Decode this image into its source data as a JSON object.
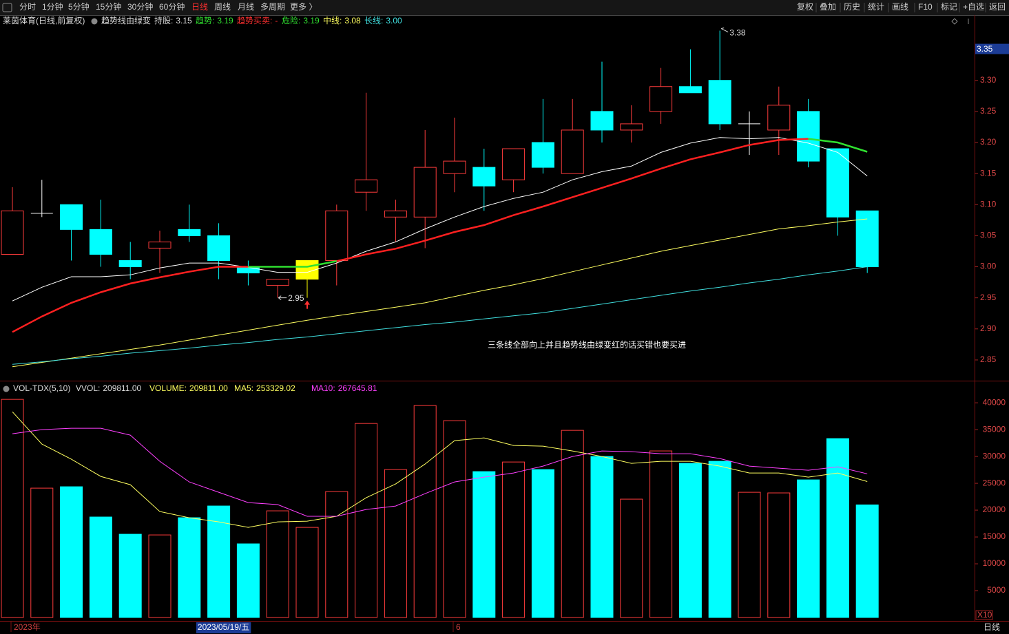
{
  "toolbar": {
    "left": [
      "分时",
      "1分钟",
      "5分钟",
      "15分钟",
      "30分钟",
      "60分钟",
      "日线",
      "周线",
      "月线",
      "多周期",
      "更多 〉"
    ],
    "active_index": 6,
    "right": [
      "复权",
      "叠加",
      "历史",
      "统计",
      "画线",
      "F10",
      "标记",
      "+自选",
      "返回"
    ]
  },
  "period_label": "日线",
  "chart_data": [
    {
      "type": "candlestick",
      "title": "莱茵体育(日线,前复权)",
      "subtitle": "趋势线由绿变",
      "indicators": [
        {
          "label": "持股:",
          "value": 3.15,
          "color": "#dddddd"
        },
        {
          "label": "趋势:",
          "value": 3.19,
          "color": "#30e030"
        },
        {
          "label": "趋势买卖:",
          "value": "-",
          "color": "#ff3030"
        },
        {
          "label": "危险:",
          "value": 3.19,
          "color": "#30e030"
        },
        {
          "label": "中线:",
          "value": 3.08,
          "color": "#ffff60"
        },
        {
          "label": "长线:",
          "value": {
            "value": 3,
            "label": "3.00"
          },
          "color": "#40e0e0"
        }
      ],
      "categories": [
        "2023年",
        null,
        null,
        null,
        null,
        null,
        null,
        "2023/05/19/五",
        null,
        null,
        null,
        null,
        null,
        null,
        null,
        "6",
        null,
        null,
        null,
        null,
        null,
        null,
        null,
        null,
        null,
        null,
        null,
        null,
        null,
        null
      ],
      "cursor_index": 7,
      "open": [
        3.02,
        3.086,
        3.1,
        3.06,
        3.01,
        3.03,
        3.06,
        3.05,
        3.0,
        2.97,
        2.98,
        3.01,
        3.12,
        3.08,
        3.08,
        3.15,
        3.16,
        3.14,
        3.2,
        3.15,
        3.25,
        3.22,
        3.25,
        3.29,
        3.3,
        3.23,
        3.22,
        3.25,
        3.19,
        3.09
      ],
      "high": [
        3.128,
        3.14,
        3.1,
        3.108,
        3.04,
        3.058,
        3.1,
        3.07,
        3.01,
        2.98,
        3.01,
        3.1,
        3.28,
        3.108,
        3.22,
        3.24,
        3.19,
        3.19,
        3.27,
        3.27,
        3.33,
        3.26,
        3.32,
        3.35,
        3.38,
        3.25,
        3.29,
        3.27,
        3.19,
        3.09
      ],
      "low": [
        3.02,
        3.08,
        3.01,
        3.0,
        2.98,
        2.99,
        3.04,
        2.98,
        2.97,
        2.95,
        2.95,
        2.97,
        3.09,
        3.04,
        3.03,
        3.12,
        3.09,
        3.12,
        3.15,
        3.15,
        3.2,
        3.2,
        3.23,
        3.28,
        3.22,
        3.18,
        3.18,
        3.16,
        3.05,
        2.99
      ],
      "close": [
        3.09,
        3.086,
        3.06,
        3.02,
        3.0,
        3.04,
        3.05,
        3.01,
        2.99,
        2.98,
        3.01,
        3.09,
        3.14,
        3.09,
        3.16,
        3.17,
        3.13,
        3.19,
        3.16,
        3.22,
        3.22,
        3.23,
        3.29,
        3.28,
        3.23,
        3.23,
        3.26,
        3.17,
        3.08,
        3.0
      ],
      "up_color": "#ff3c3c",
      "down_color": "#00ffff",
      "flat_color": "#ffffff",
      "highlight": {
        "index": 10,
        "color": "#ffff00"
      },
      "lines": [
        {
          "color": "#ffffff",
          "width": 1,
          "values": [
            2.945,
            2.967,
            2.984,
            2.984,
            2.987,
            2.998,
            3.006,
            3.006,
            2.999,
            2.991,
            2.991,
            3.006,
            3.025,
            3.04,
            3.061,
            3.08,
            3.097,
            3.11,
            3.12,
            3.14,
            3.153,
            3.162,
            3.184,
            3.199,
            3.208,
            3.206,
            3.208,
            3.199,
            3.184,
            3.146
          ]
        },
        {
          "color": "#ff2020",
          "width": 2.5,
          "values": [
            2.895,
            2.92,
            2.942,
            2.959,
            2.973,
            2.983,
            2.992,
            3.0,
            3.0,
            null,
            null,
            3.009,
            3.02,
            3.029,
            3.042,
            3.056,
            3.067,
            3.083,
            3.097,
            3.112,
            3.127,
            3.142,
            3.158,
            3.173,
            3.184,
            3.196,
            3.204,
            3.206,
            null,
            null
          ]
        },
        {
          "color": "#30e030",
          "width": 2.5,
          "values": [
            null,
            null,
            null,
            null,
            null,
            null,
            null,
            null,
            3.0,
            3.0,
            3.0,
            3.009,
            null,
            null,
            null,
            null,
            null,
            null,
            null,
            null,
            null,
            null,
            null,
            null,
            null,
            null,
            null,
            3.206,
            3.2,
            3.185
          ]
        },
        {
          "color": "#ffff60",
          "width": 1,
          "values": [
            2.839,
            2.846,
            2.853,
            2.86,
            2.867,
            2.874,
            2.882,
            2.89,
            2.898,
            2.906,
            2.914,
            2.921,
            2.928,
            2.935,
            2.942,
            2.952,
            2.962,
            2.971,
            2.981,
            2.992,
            3.003,
            3.014,
            3.025,
            3.034,
            3.043,
            3.052,
            3.061,
            3.066,
            3.072,
            3.077
          ]
        },
        {
          "color": "#40e0e0",
          "width": 1,
          "values": [
            2.843,
            2.847,
            2.852,
            2.856,
            2.861,
            2.865,
            2.869,
            2.874,
            2.878,
            2.883,
            2.887,
            2.892,
            2.897,
            2.902,
            2.907,
            2.911,
            2.916,
            2.921,
            2.926,
            2.933,
            2.94,
            2.947,
            2.954,
            2.961,
            2.967,
            2.974,
            2.98,
            2.987,
            2.993,
            3.0
          ]
        }
      ],
      "max_label": 3.38,
      "min_label": 2.95,
      "annotation": "三条线全部向上并且趋势线由绿变红的话买错也要买进",
      "cursor_label": 3.35,
      "ylim": [
        2.82,
        3.385
      ],
      "yticks": [
        2.85,
        {
          "value": 2.9,
          "label": "2.90"
        },
        2.95,
        {
          "value": 3,
          "label": "3.00"
        },
        3.05,
        {
          "value": 3.1,
          "label": "3.10"
        },
        3.15,
        {
          "value": 3.2,
          "label": "3.20"
        },
        3.25,
        {
          "value": 3.3,
          "label": "3.30"
        }
      ]
    },
    {
      "type": "bar",
      "title": "VOL-TDX(5,10)",
      "indicators": [
        {
          "label": "VVOL:",
          "value": {
            "value": 209811,
            "label": "209811.00"
          },
          "color": "#dddddd"
        },
        {
          "label": "VOLUME:",
          "value": {
            "value": 209811,
            "label": "209811.00"
          },
          "color": "#ffff60"
        },
        {
          "label": "MA5:",
          "value": 253329.02,
          "color": "#ffff60"
        },
        {
          "label": "MA10:",
          "value": 267645.81,
          "color": "#ff40ff"
        }
      ],
      "values": [
        40640,
        24100,
        24360,
        18720,
        15510,
        15380,
        18590,
        20770,
        13720,
        19870,
        16790,
        23460,
        36150,
        27560,
        39490,
        36670,
        27180,
        28970,
        27560,
        34870,
        30000,
        22050,
        31030,
        28720,
        29100,
        23330,
        23210,
        25640,
        33330,
        20981.1
      ],
      "lines": [
        {
          "color": "#ffff60",
          "width": 1,
          "values": [
            38330,
            32310,
            29490,
            26280,
            24740,
            19740,
            18590,
            17820,
            16790,
            17820,
            17950,
            18850,
            22310,
            24870,
            28590,
            32950,
            33460,
            32050,
            31920,
            31030,
            30000,
            28720,
            29100,
            29100,
            28210,
            26920,
            26920,
            26150,
            26920,
            25332.9
          ]
        },
        {
          "color": "#ff40ff",
          "width": 1,
          "values": [
            34230,
            35000,
            35260,
            35260,
            33970,
            29100,
            25260,
            23330,
            21410,
            21030,
            18850,
            18850,
            20130,
            20770,
            23080,
            25260,
            26150,
            26920,
            28210,
            30000,
            31030,
            30900,
            30510,
            30510,
            29620,
            28210,
            27820,
            27440,
            28080,
            26764.6
          ]
        }
      ],
      "unit_label": "X10",
      "ylim": [
        0,
        41300
      ],
      "yticks": [
        5000,
        10000,
        15000,
        20000,
        25000,
        30000,
        35000,
        40000
      ]
    }
  ]
}
